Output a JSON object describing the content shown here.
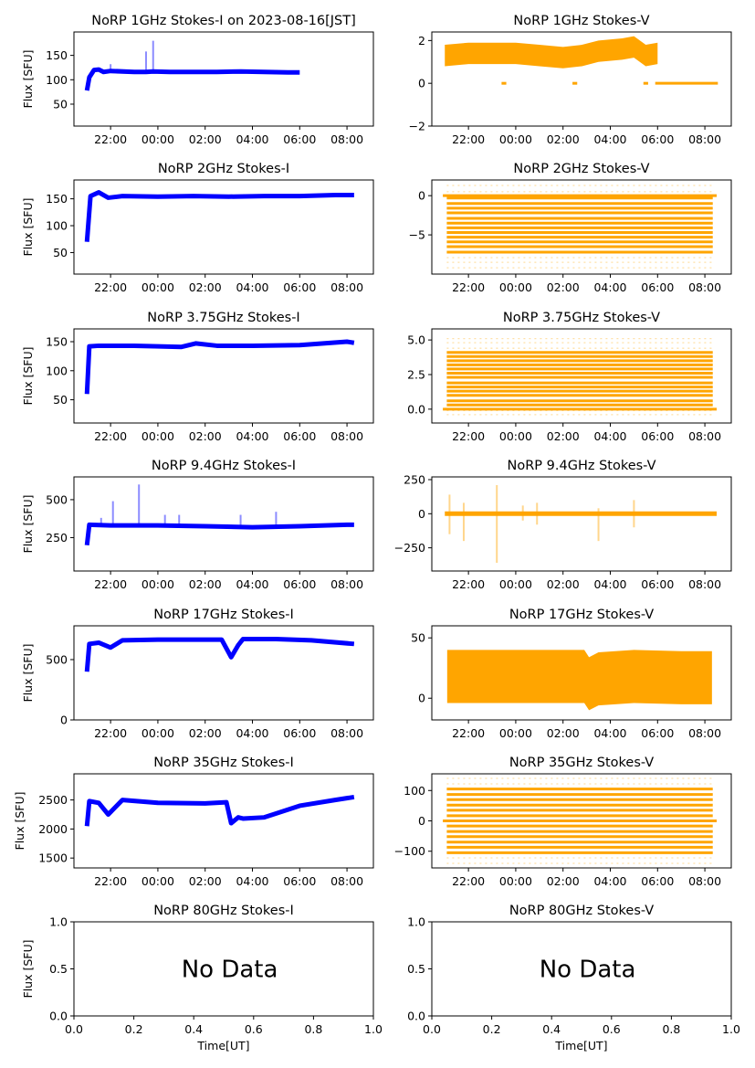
{
  "figure": {
    "date_label": "2023-08-16[JST]",
    "ylabel": "Flux [SFU]",
    "xlabel_time": "Time[UT]",
    "no_data_text": "No Data"
  },
  "colors": {
    "stokes_i": "#0000ff",
    "stokes_v": "#ffa500"
  },
  "chart_data": [
    {
      "type": "scatter",
      "title": "NoRP 1GHz Stokes-I on 2023-08-16[JST]",
      "ylabel": "Flux [SFU]",
      "xlim": [
        "20:27",
        "09:07"
      ],
      "ylim": [
        5,
        198
      ],
      "yticks": [
        "50",
        "100",
        "150"
      ],
      "ytick_values": [
        50,
        100,
        150
      ],
      "xticks": [
        "22:00",
        "00:00",
        "02:00",
        "04:00",
        "06:00",
        "08:00"
      ],
      "color": "#0000ff",
      "series": [
        {
          "t": [
            21.0,
            21.1,
            21.3,
            21.5,
            21.7,
            22.0,
            23.0,
            23.5,
            23.8,
            0.5,
            1.5,
            2.5,
            3.5,
            4.5,
            5.5,
            6.0
          ],
          "y": [
            78,
            105,
            120,
            121,
            116,
            118,
            116,
            116,
            117,
            116,
            116,
            116,
            117,
            116,
            115,
            115
          ]
        }
      ],
      "spikes": [
        {
          "t": 22.0,
          "y": 132
        },
        {
          "t": 23.5,
          "y": 158
        },
        {
          "t": 23.8,
          "y": 180
        }
      ]
    },
    {
      "type": "scatter",
      "title": "NoRP 1GHz Stokes-V",
      "ylabel": "",
      "xlim": [
        "20:27",
        "09:07"
      ],
      "ylim": [
        -2,
        2.4
      ],
      "yticks": [
        "−2",
        "0",
        "2"
      ],
      "ytick_values": [
        -2,
        0,
        2
      ],
      "xticks": [
        "22:00",
        "00:00",
        "02:00",
        "04:00",
        "06:00",
        "08:00"
      ],
      "color": "#ffa500",
      "series": [
        {
          "t": [
            21.0,
            22.0,
            23.0,
            0.0,
            1.0,
            2.0,
            2.8,
            3.5,
            4.5,
            5.0,
            5.5,
            6.0
          ],
          "y": [
            1.3,
            1.4,
            1.4,
            1.4,
            1.3,
            1.2,
            1.3,
            1.5,
            1.6,
            1.7,
            1.3,
            1.4
          ]
        }
      ],
      "band": 0.5,
      "zero_segments": [
        [
          23.4,
          23.6
        ],
        [
          2.4,
          2.6
        ],
        [
          5.4,
          5.6
        ],
        [
          5.9,
          8.55
        ]
      ]
    },
    {
      "type": "scatter",
      "title": "NoRP 2GHz Stokes-I",
      "ylabel": "Flux [SFU]",
      "xlim": [
        "20:27",
        "09:07"
      ],
      "ylim": [
        10,
        185
      ],
      "yticks": [
        "50",
        "100",
        "150"
      ],
      "ytick_values": [
        50,
        100,
        150
      ],
      "xticks": [
        "22:00",
        "00:00",
        "02:00",
        "04:00",
        "06:00",
        "08:00"
      ],
      "color": "#0000ff",
      "series": [
        {
          "t": [
            21.0,
            21.15,
            21.5,
            21.9,
            22.5,
            0.0,
            1.5,
            3.0,
            4.5,
            6.0,
            7.5,
            8.3
          ],
          "y": [
            70,
            155,
            162,
            152,
            155,
            154,
            155,
            154,
            155,
            155,
            157,
            157
          ]
        }
      ]
    },
    {
      "type": "scatter",
      "title": "NoRP 2GHz Stokes-V",
      "ylabel": "",
      "xlim": [
        "20:27",
        "09:07"
      ],
      "ylim": [
        -10,
        2
      ],
      "yticks": [
        "−5",
        "0"
      ],
      "ytick_values": [
        -5,
        0
      ],
      "xticks": [
        "22:00",
        "00:00",
        "02:00",
        "04:00",
        "06:00",
        "08:00"
      ],
      "color": "#ffa500",
      "levels": [
        -0.3,
        -1.0,
        -1.6,
        -2.2,
        -2.9,
        -3.5,
        -4.1,
        -4.7,
        -5.3,
        -5.9,
        -6.5,
        -7.2
      ],
      "sparse_levels": [
        1.3,
        0.5,
        -7.9,
        -8.5,
        -9.2
      ]
    },
    {
      "type": "scatter",
      "title": "NoRP 3.75GHz Stokes-I",
      "ylabel": "Flux [SFU]",
      "xlim": [
        "20:27",
        "09:07"
      ],
      "ylim": [
        10,
        172
      ],
      "yticks": [
        "50",
        "100",
        "150"
      ],
      "ytick_values": [
        50,
        100,
        150
      ],
      "xticks": [
        "22:00",
        "00:00",
        "02:00",
        "04:00",
        "06:00",
        "08:00"
      ],
      "color": "#0000ff",
      "series": [
        {
          "t": [
            21.0,
            21.1,
            21.5,
            22.0,
            23.0,
            1.0,
            1.6,
            2.5,
            4.0,
            6.0,
            8.0,
            8.3
          ],
          "y": [
            60,
            142,
            143,
            143,
            143,
            141,
            147,
            143,
            143,
            144,
            150,
            148
          ]
        }
      ]
    },
    {
      "type": "scatter",
      "title": "NoRP 3.75GHz Stokes-V",
      "ylabel": "",
      "xlim": [
        "20:27",
        "09:07"
      ],
      "ylim": [
        -1.0,
        5.8
      ],
      "yticks": [
        "0.0",
        "2.5",
        "5.0"
      ],
      "ytick_values": [
        0,
        2.5,
        5
      ],
      "xticks": [
        "22:00",
        "00:00",
        "02:00",
        "04:00",
        "06:00",
        "08:00"
      ],
      "color": "#ffa500",
      "levels": [
        0.3,
        0.6,
        1.0,
        1.3,
        1.6,
        1.9,
        2.3,
        2.6,
        2.9,
        3.2,
        3.5,
        3.8,
        4.1
      ],
      "sparse_levels": [
        4.4,
        4.8,
        5.1,
        -0.1,
        -0.4
      ]
    },
    {
      "type": "scatter",
      "title": "NoRP 9.4GHz Stokes-I",
      "ylabel": "Flux [SFU]",
      "xlim": [
        "20:27",
        "09:07"
      ],
      "ylim": [
        30,
        650
      ],
      "yticks": [
        "250",
        "500"
      ],
      "ytick_values": [
        250,
        500
      ],
      "xticks": [
        "22:00",
        "00:00",
        "02:00",
        "04:00",
        "06:00",
        "08:00"
      ],
      "color": "#0000ff",
      "series": [
        {
          "t": [
            21.0,
            21.1,
            22.0,
            23.0,
            0.0,
            2.0,
            4.0,
            6.0,
            8.0,
            8.3
          ],
          "y": [
            200,
            335,
            330,
            330,
            330,
            325,
            318,
            325,
            335,
            335
          ]
        }
      ],
      "spikes": [
        {
          "t": 23.2,
          "y": 600
        },
        {
          "t": 21.6,
          "y": 380
        },
        {
          "t": 0.3,
          "y": 400
        },
        {
          "t": 0.9,
          "y": 400
        },
        {
          "t": 3.5,
          "y": 400
        },
        {
          "t": 5.0,
          "y": 420
        },
        {
          "t": 22.1,
          "y": 490
        }
      ]
    },
    {
      "type": "scatter",
      "title": "NoRP 9.4GHz Stokes-V",
      "ylabel": "",
      "xlim": [
        "20:27",
        "09:07"
      ],
      "ylim": [
        -420,
        270
      ],
      "yticks": [
        "−250",
        "0",
        "250"
      ],
      "ytick_values": [
        -250,
        0,
        250
      ],
      "xticks": [
        "22:00",
        "00:00",
        "02:00",
        "04:00",
        "06:00",
        "08:00"
      ],
      "color": "#ffa500",
      "series": [
        {
          "t": [
            21.0,
            8.5
          ],
          "y": [
            0,
            0
          ]
        }
      ],
      "spikes": [
        {
          "t": 23.2,
          "y": 210,
          "ymin": -360
        },
        {
          "t": 0.3,
          "y": 60,
          "ymin": -50
        },
        {
          "t": 0.9,
          "y": 80,
          "ymin": -80
        },
        {
          "t": 3.5,
          "y": 40,
          "ymin": -200
        },
        {
          "t": 5.0,
          "y": 100,
          "ymin": -100
        },
        {
          "t": 21.2,
          "y": 140,
          "ymin": -150
        },
        {
          "t": 21.8,
          "y": 80,
          "ymin": -200
        }
      ]
    },
    {
      "type": "scatter",
      "title": "NoRP 17GHz Stokes-I",
      "ylabel": "Flux [SFU]",
      "xlim": [
        "20:27",
        "09:07"
      ],
      "ylim": [
        0,
        780
      ],
      "yticks": [
        "0",
        "500"
      ],
      "ytick_values": [
        0,
        500
      ],
      "xticks": [
        "22:00",
        "00:00",
        "02:00",
        "04:00",
        "06:00",
        "08:00"
      ],
      "color": "#0000ff",
      "series": [
        {
          "t": [
            21.0,
            21.1,
            21.5,
            22.0,
            22.5,
            0.0,
            1.5,
            2.7,
            3.1,
            3.4,
            3.6,
            5.0,
            6.5,
            8.3
          ],
          "y": [
            400,
            630,
            640,
            600,
            660,
            665,
            665,
            665,
            520,
            620,
            670,
            670,
            660,
            630
          ]
        }
      ]
    },
    {
      "type": "scatter",
      "title": "NoRP 17GHz Stokes-V",
      "ylabel": "",
      "xlim": [
        "20:27",
        "09:07"
      ],
      "ylim": [
        -18,
        60
      ],
      "yticks": [
        "0",
        "50"
      ],
      "ytick_values": [
        0,
        50
      ],
      "xticks": [
        "22:00",
        "00:00",
        "02:00",
        "04:00",
        "06:00",
        "08:00"
      ],
      "color": "#ffa500",
      "series": [
        {
          "t": [
            21.1,
            23.0,
            1.0,
            2.9,
            3.1,
            3.5,
            5.0,
            7.0,
            8.3
          ],
          "y": [
            18,
            18,
            18,
            18,
            12,
            16,
            18,
            17,
            17
          ]
        }
      ],
      "band": 22
    },
    {
      "type": "scatter",
      "title": "NoRP 35GHz Stokes-I",
      "ylabel": "Flux [SFU]",
      "xlim": [
        "20:27",
        "09:07"
      ],
      "ylim": [
        1330,
        2950
      ],
      "yticks": [
        "1500",
        "2000",
        "2500"
      ],
      "ytick_values": [
        1500,
        2000,
        2500
      ],
      "xticks": [
        "22:00",
        "00:00",
        "02:00",
        "04:00",
        "06:00",
        "08:00"
      ],
      "color": "#0000ff",
      "series": [
        {
          "t": [
            21.0,
            21.1,
            21.5,
            21.9,
            22.5,
            0.0,
            2.0,
            2.9,
            3.1,
            3.4,
            3.6,
            4.5,
            6.0,
            7.5,
            8.3
          ],
          "y": [
            2050,
            2480,
            2450,
            2250,
            2500,
            2450,
            2440,
            2460,
            2100,
            2200,
            2180,
            2200,
            2400,
            2500,
            2550
          ]
        }
      ]
    },
    {
      "type": "scatter",
      "title": "NoRP 35GHz Stokes-V",
      "ylabel": "",
      "xlim": [
        "20:27",
        "09:07"
      ],
      "ylim": [
        -155,
        155
      ],
      "yticks": [
        "−100",
        "0",
        "100"
      ],
      "ytick_values": [
        -100,
        0,
        100
      ],
      "xticks": [
        "22:00",
        "00:00",
        "02:00",
        "04:00",
        "06:00",
        "08:00"
      ],
      "color": "#ffa500",
      "levels": [
        105,
        87,
        70,
        52,
        35,
        17,
        0,
        -17,
        -35,
        -52,
        -70,
        -87,
        -105
      ],
      "sparse_levels": [
        122,
        140,
        -122,
        -140
      ]
    },
    {
      "type": "scatter",
      "title": "NoRP 80GHz Stokes-I",
      "ylabel": "Flux [SFU]",
      "xlabel": "Time[UT]",
      "xlim": [
        0,
        1
      ],
      "ylim": [
        0,
        1
      ],
      "yticks": [
        "0.0",
        "0.5",
        "1.0"
      ],
      "ytick_values": [
        0,
        0.5,
        1
      ],
      "xticks": [
        "0.0",
        "0.2",
        "0.4",
        "0.6",
        "0.8",
        "1.0"
      ],
      "no_data": true,
      "annotation": "No Data"
    },
    {
      "type": "scatter",
      "title": "NoRP 80GHz Stokes-V",
      "ylabel": "",
      "xlabel": "Time[UT]",
      "xlim": [
        0,
        1
      ],
      "ylim": [
        0,
        1
      ],
      "yticks": [
        "0.0",
        "0.5",
        "1.0"
      ],
      "ytick_values": [
        0,
        0.5,
        1
      ],
      "xticks": [
        "0.0",
        "0.2",
        "0.4",
        "0.6",
        "0.8",
        "1.0"
      ],
      "no_data": true,
      "annotation": "No Data"
    }
  ]
}
